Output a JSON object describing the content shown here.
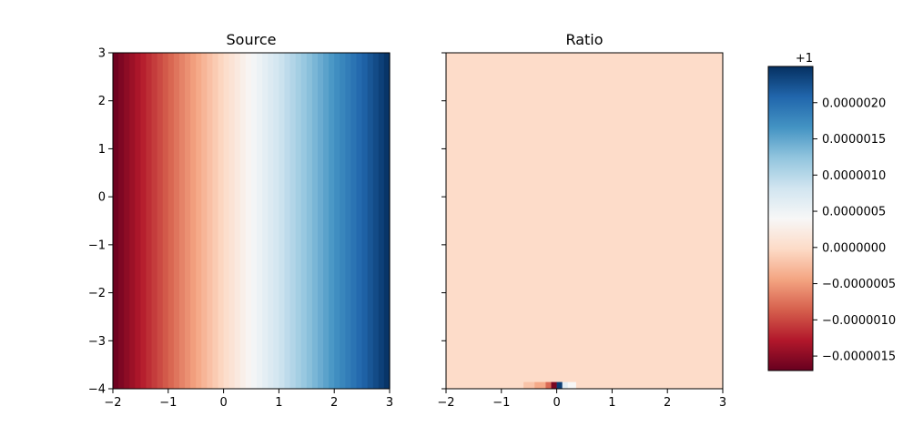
{
  "colormap": {
    "name": "RdBu",
    "stops": [
      "#67001f",
      "#b2182b",
      "#d6604d",
      "#f4a582",
      "#fddbc7",
      "#f7f7f7",
      "#d1e5f0",
      "#92c5de",
      "#4393c3",
      "#2166ac",
      "#053061"
    ]
  },
  "chart_data": [
    {
      "type": "heatmap",
      "title": "Source",
      "xlim": [
        -2,
        3
      ],
      "ylim": [
        -4,
        3
      ],
      "xticks": [
        "−2",
        "−1",
        "0",
        "1",
        "2",
        "3"
      ],
      "yticks": [
        "3",
        "2",
        "1",
        "0",
        "−1",
        "−2",
        "−3",
        "−4"
      ],
      "grid": false,
      "columns": 50,
      "description_values": "color varies linearly with x from minimum (dark red) at x=-2 to maximum (dark blue) at x=3; constant in y"
    },
    {
      "type": "heatmap",
      "title": "Ratio",
      "xlim": [
        -2,
        3
      ],
      "ylim": [
        -4,
        3
      ],
      "xticks": [
        "−2",
        "−1",
        "0",
        "1",
        "2",
        "3"
      ],
      "yticks_shared": true,
      "grid": false,
      "background_value": 0.0,
      "bottom_row_y_range": [
        -4,
        -3.86
      ],
      "bottom_row_segments": [
        {
          "x": [
            -2.0,
            -0.6
          ],
          "value": 0.0
        },
        {
          "x": [
            -0.6,
            -0.4
          ],
          "value": -2e-07
        },
        {
          "x": [
            -0.4,
            -0.2
          ],
          "value": -4e-07
        },
        {
          "x": [
            -0.2,
            -0.1
          ],
          "value": -8e-07
        },
        {
          "x": [
            -0.1,
            0.0
          ],
          "value": -1.6e-06
        },
        {
          "x": [
            0.0,
            0.1
          ],
          "value": 2.4e-06
        },
        {
          "x": [
            0.1,
            0.2
          ],
          "value": 6e-07
        },
        {
          "x": [
            0.2,
            0.35
          ],
          "value": 4e-07
        },
        {
          "x": [
            0.35,
            3.0
          ],
          "value": 0.0
        }
      ]
    }
  ],
  "colorbar": {
    "offset_label": "+1",
    "min": -1.7e-06,
    "max": 2.5e-06,
    "ticks": [
      {
        "value": -1.5e-06,
        "label": "−0.0000015"
      },
      {
        "value": -1e-06,
        "label": "−0.0000010"
      },
      {
        "value": -5e-07,
        "label": "−0.0000005"
      },
      {
        "value": 0.0,
        "label": "0.0000000"
      },
      {
        "value": 5e-07,
        "label": "0.0000005"
      },
      {
        "value": 1e-06,
        "label": "0.0000010"
      },
      {
        "value": 1.5e-06,
        "label": "0.0000015"
      },
      {
        "value": 2e-06,
        "label": "0.0000020"
      }
    ]
  }
}
